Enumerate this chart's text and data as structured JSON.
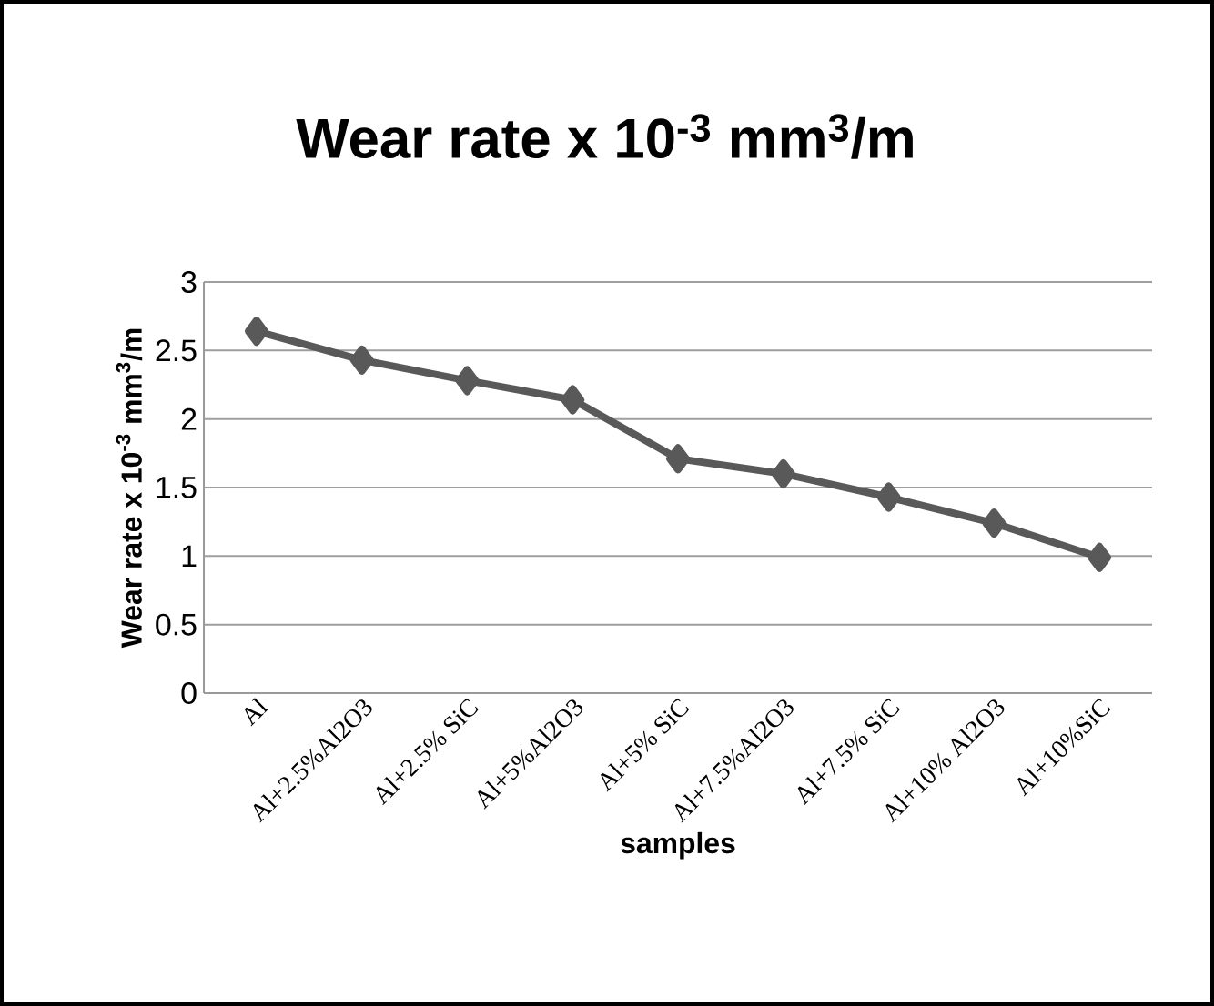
{
  "chart_data": {
    "type": "line",
    "title": "Wear rate x 10$^{-3}$ mm$^{3}$/m",
    "ylabel": "Wear rate x 10$^{-3}$ mm$^{3}$/m",
    "xlabel": "samples",
    "categories": [
      "Al",
      "Al+2.5%Al2O3",
      "Al+2.5% SiC",
      "Al+5%Al2O3",
      "Al+5% SiC",
      "Al+7.5%Al2O3",
      "Al+7.5% SiC",
      "Al+10% Al2O3",
      "Al+10%SiC"
    ],
    "series": [
      {
        "color": "#595959",
        "values": [
          2.64,
          2.43,
          2.28,
          2.14,
          1.71,
          1.6,
          1.43,
          1.24,
          0.99
        ]
      }
    ],
    "ylim": [
      0,
      3
    ],
    "yticks": [
      0,
      0.5,
      1,
      1.5,
      2,
      2.5,
      3
    ],
    "grid": "y",
    "marker": "diamond",
    "line_style": "solid"
  }
}
